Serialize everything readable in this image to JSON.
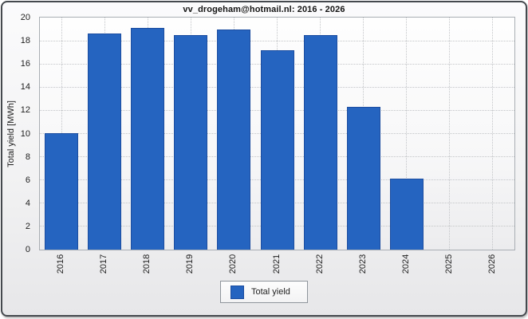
{
  "window": {
    "title": "vv_drogeham@hotmail.nl: 2016 - 2026"
  },
  "chart_data": {
    "type": "bar",
    "title": "vv_drogeham@hotmail.nl: 2016 - 2026",
    "categories": [
      "2016",
      "2017",
      "2018",
      "2019",
      "2020",
      "2021",
      "2022",
      "2023",
      "2024",
      "2025",
      "2026"
    ],
    "values": [
      10.0,
      18.6,
      19.1,
      18.5,
      19.0,
      17.2,
      18.5,
      12.3,
      6.1,
      0,
      0
    ],
    "series_name": "Total yield",
    "xlabel": "",
    "ylabel": "Total yield [MWh]",
    "ylim": [
      0,
      20
    ],
    "yticks": [
      0,
      2,
      4,
      6,
      8,
      10,
      12,
      14,
      16,
      18,
      20
    ],
    "grid": "dotted horizontal and vertical",
    "legend_position": "bottom-center",
    "x_tick_rotation_deg": -90
  },
  "legend": {
    "label": "Total yield",
    "swatch_color": "#2564c0"
  },
  "colors": {
    "bar_fill": "#2564c0",
    "bar_border": "#1c4da0",
    "window_border": "#45494e",
    "plot_border": "#a9aeb3",
    "gridline": "#c3c5c8",
    "text": "#1e1e1e"
  }
}
